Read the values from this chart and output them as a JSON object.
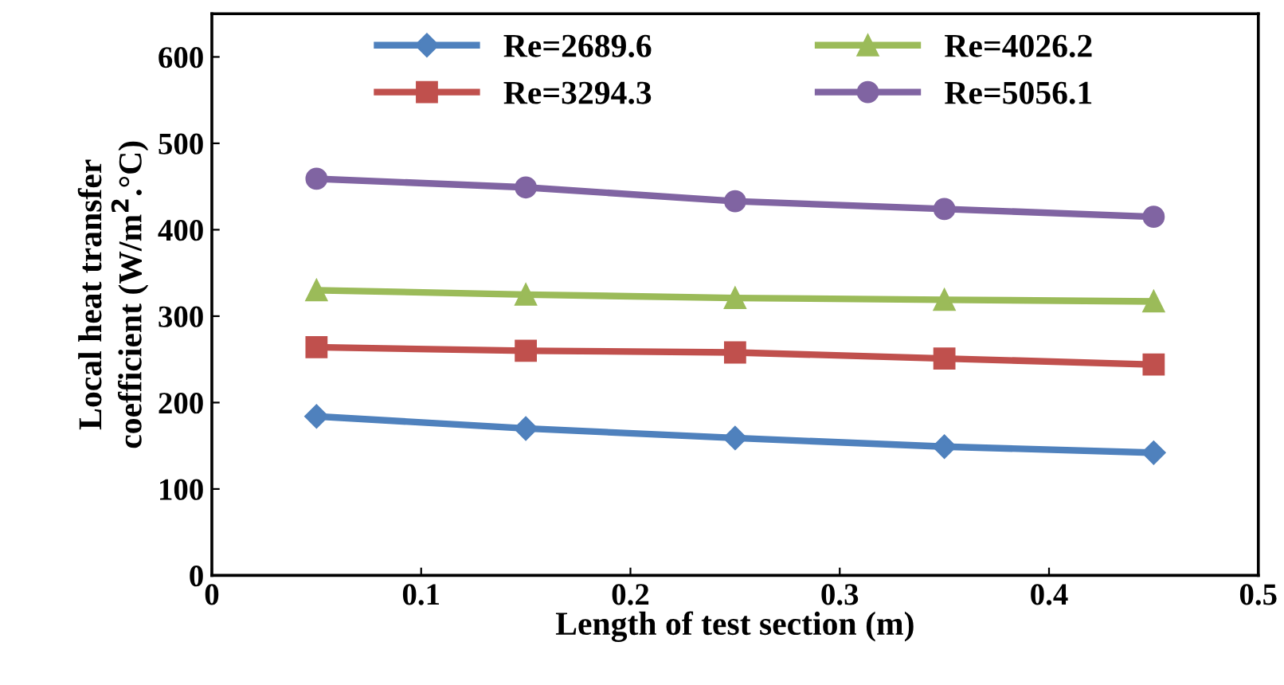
{
  "chart_data": {
    "type": "line",
    "xlabel": "Length of test section (m)",
    "ylabel": "Local heat transfer\ncoefficient (W/m$^{2}$.°C)",
    "x": [
      0.05,
      0.15,
      0.25,
      0.35,
      0.45
    ],
    "xlim": [
      0,
      0.5
    ],
    "xticks": [
      0,
      0.1,
      0.2,
      0.3,
      0.4,
      0.5
    ],
    "ylim": [
      0,
      650
    ],
    "yticks": [
      0,
      100,
      200,
      300,
      400,
      500,
      600
    ],
    "grid": false,
    "legend": "top",
    "series": [
      {
        "name": "Re=2689.6",
        "color": "#4f81bd",
        "marker": "diamond",
        "values": [
          184,
          170,
          159,
          149,
          142
        ]
      },
      {
        "name": "Re=3294.3",
        "color": "#c0504d",
        "marker": "square",
        "values": [
          264,
          260,
          258,
          251,
          244
        ]
      },
      {
        "name": "Re=4026.2",
        "color": "#9bbb59",
        "marker": "triangle",
        "values": [
          330,
          325,
          321,
          319,
          317
        ]
      },
      {
        "name": "Re=5056.1",
        "color": "#8064a2",
        "marker": "circle",
        "values": [
          459,
          449,
          433,
          424,
          415
        ]
      }
    ]
  }
}
